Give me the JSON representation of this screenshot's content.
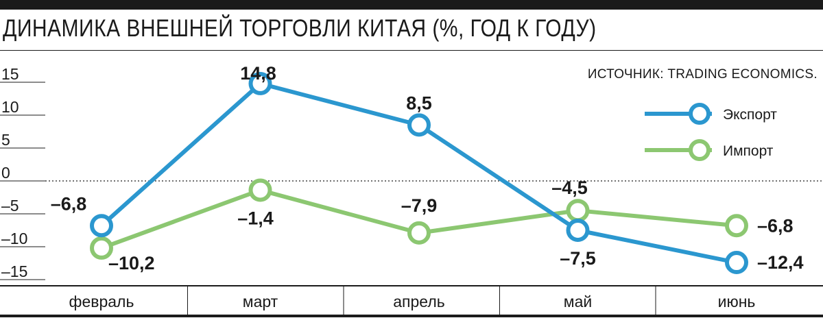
{
  "title": "ДИНАМИКА ВНЕШНЕЙ ТОРГОВЛИ КИТАЯ (%, ГОД К ГОДУ)",
  "source": "ИСТОЧНИК: TRADING ECONOMICS.",
  "colors": {
    "export": "#2b97cf",
    "import": "#8cc771",
    "text": "#1a1a1a"
  },
  "chart_data": {
    "type": "line",
    "title": "ДИНАМИКА ВНЕШНЕЙ ТОРГОВЛИ КИТАЯ (%, ГОД К ГОДУ)",
    "categories": [
      "февраль",
      "март",
      "апрель",
      "май",
      "июнь"
    ],
    "yticks": [
      "15",
      "10",
      "5",
      "0",
      "–5",
      "–10",
      "–15"
    ],
    "ytick_values": [
      15,
      10,
      5,
      0,
      -5,
      -10,
      -15
    ],
    "ylim": [
      -15,
      15
    ],
    "legend_position": "top-right",
    "series": [
      {
        "name": "Экспорт",
        "values": [
          -6.8,
          14.8,
          8.5,
          -7.5,
          -12.4
        ],
        "labels": [
          "–6,8",
          "14,8",
          "8,5",
          "–7,5",
          "–12,4"
        ]
      },
      {
        "name": "Импорт",
        "values": [
          -10.2,
          -1.4,
          -7.9,
          -4.5,
          -6.8
        ],
        "labels": [
          "–10,2",
          "–1,4",
          "–7,9",
          "–4,5",
          "–6,8"
        ]
      }
    ]
  }
}
